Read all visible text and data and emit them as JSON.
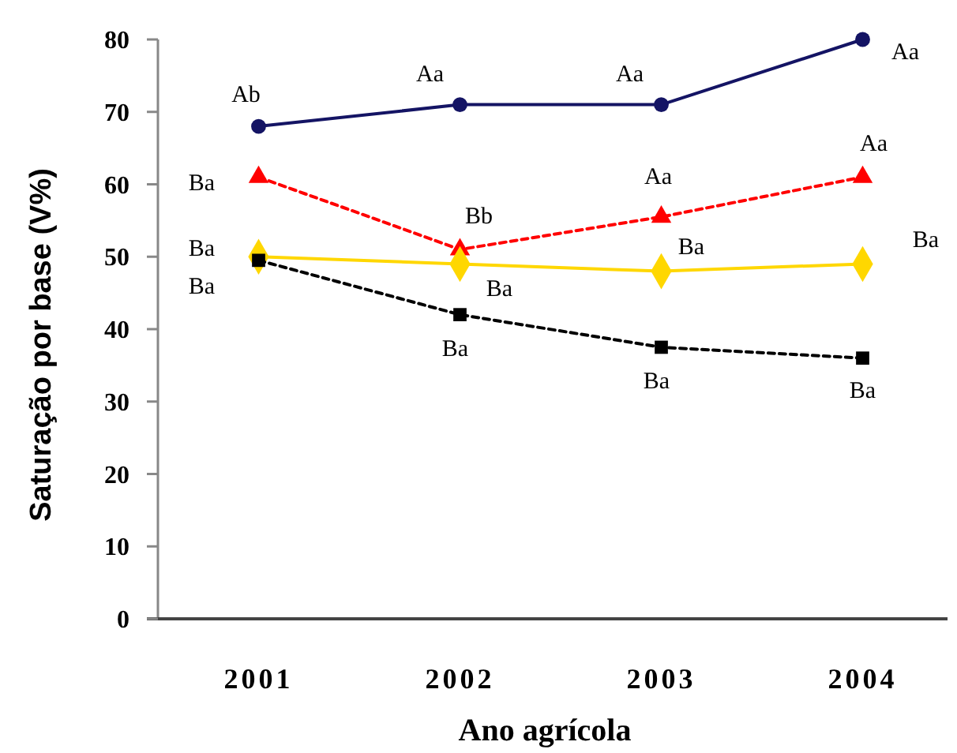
{
  "chart_data": {
    "type": "line",
    "xlabel": "Ano agrícola",
    "ylabel": "Saturação por base (V%)",
    "categories": [
      "2001",
      "2002",
      "2003",
      "2004"
    ],
    "ylim": [
      0,
      80
    ],
    "yticks": [
      0,
      10,
      20,
      30,
      40,
      50,
      60,
      70,
      80
    ],
    "grid": false,
    "series": [
      {
        "color": "#141464",
        "values": [
          68,
          71,
          71,
          80
        ],
        "marker": "circle",
        "line_style": "solid"
      },
      {
        "color": "#ff0000",
        "values": [
          61,
          51,
          55.5,
          61
        ],
        "marker": "triangle",
        "line_style": "dashed"
      },
      {
        "color": "#ffd700",
        "values": [
          50,
          49,
          48,
          49
        ],
        "marker": "diamond",
        "line_style": "solid"
      },
      {
        "color": "#000000",
        "values": [
          49.5,
          42,
          37.5,
          36
        ],
        "marker": "square",
        "line_style": "dashed"
      }
    ],
    "annotations": [
      {
        "text": "Ab",
        "x": "2001",
        "y": 68
      },
      {
        "text": "Aa",
        "x": "2002",
        "y": 71
      },
      {
        "text": "Aa",
        "x": "2003",
        "y": 71
      },
      {
        "text": "Aa",
        "x": "2004",
        "y": 80
      },
      {
        "text": "Ba",
        "x": "2001",
        "y": 61
      },
      {
        "text": "Bb",
        "x": "2002",
        "y": 51
      },
      {
        "text": "Aa",
        "x": "2003",
        "y": 55.5
      },
      {
        "text": "Aa",
        "x": "2004",
        "y": 61
      },
      {
        "text": "Ba",
        "x": "2001",
        "y": 50
      },
      {
        "text": "Ba",
        "x": "2002",
        "y": 49
      },
      {
        "text": "Ba",
        "x": "2003",
        "y": 48
      },
      {
        "text": "Ba",
        "x": "2004",
        "y": 49
      },
      {
        "text": "Ba",
        "x": "2001",
        "y": 49.5
      },
      {
        "text": "Ba",
        "x": "2002",
        "y": 42
      },
      {
        "text": "Ba",
        "x": "2003",
        "y": 37.5
      },
      {
        "text": "Ba",
        "x": "2004",
        "y": 36
      }
    ]
  }
}
